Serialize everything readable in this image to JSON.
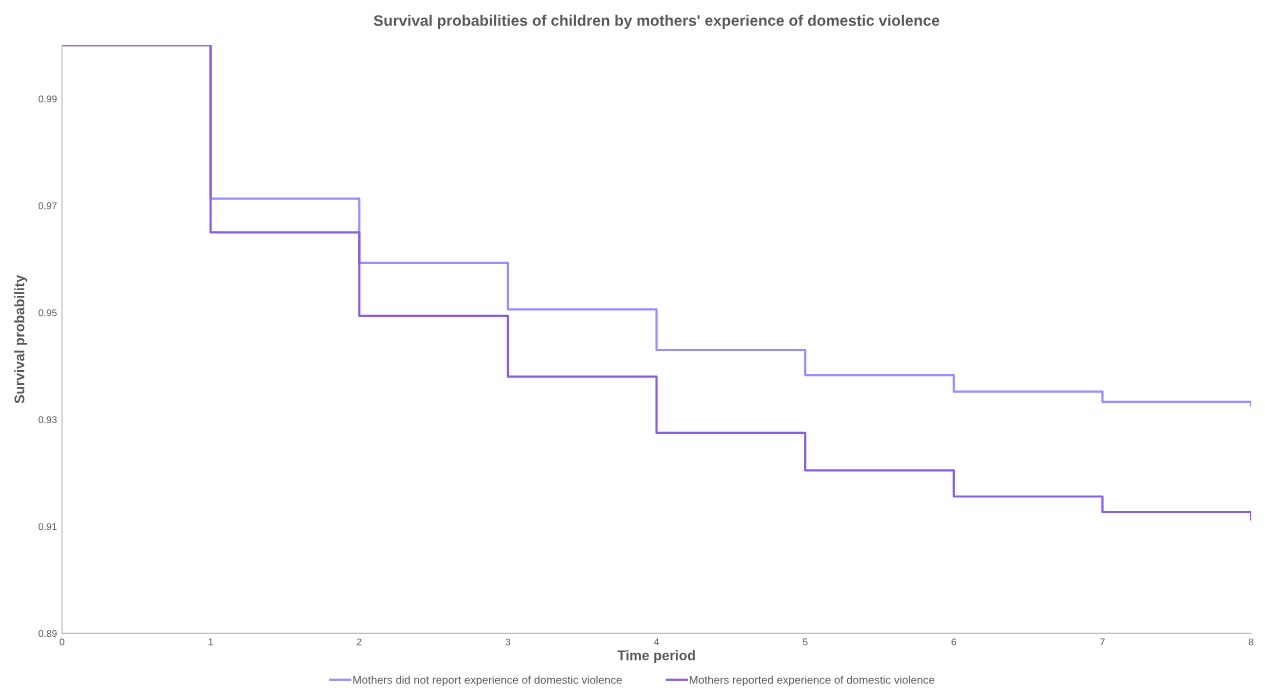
{
  "chart_data": {
    "type": "step",
    "title": "Survival probabilities of children by mothers' experience of domestic violence",
    "xlabel": "Time period",
    "ylabel": "Survival probability",
    "series": [
      {
        "name": "Mothers did not report experience of domestic violence",
        "color": "#9b8cff",
        "x": [
          0,
          1,
          2,
          3,
          4,
          5,
          6,
          7,
          8,
          8
        ],
        "values": [
          1.0,
          0.9713,
          0.9593,
          0.9506,
          0.943,
          0.9383,
          0.9352,
          0.9333,
          0.9333,
          0.9326
        ]
      },
      {
        "name": "Mothers reported experience of domestic violence",
        "color": "#8a5ee0",
        "x": [
          0,
          1,
          2,
          3,
          4,
          5,
          6,
          7,
          8,
          8
        ],
        "values": [
          1.0,
          0.965,
          0.9494,
          0.938,
          0.9275,
          0.9205,
          0.9156,
          0.9127,
          0.9127,
          0.9113
        ]
      }
    ],
    "xlim": [
      0,
      8
    ],
    "xticks": [
      0,
      1,
      2,
      3,
      4,
      5,
      6,
      7,
      8
    ],
    "ylim": [
      0.89,
      1.0
    ],
    "yticks": [
      0.89,
      0.91,
      0.93,
      0.95,
      0.97,
      0.99
    ],
    "grid": false,
    "legend": "bottom",
    "marker": "none",
    "line_style": "solid"
  }
}
